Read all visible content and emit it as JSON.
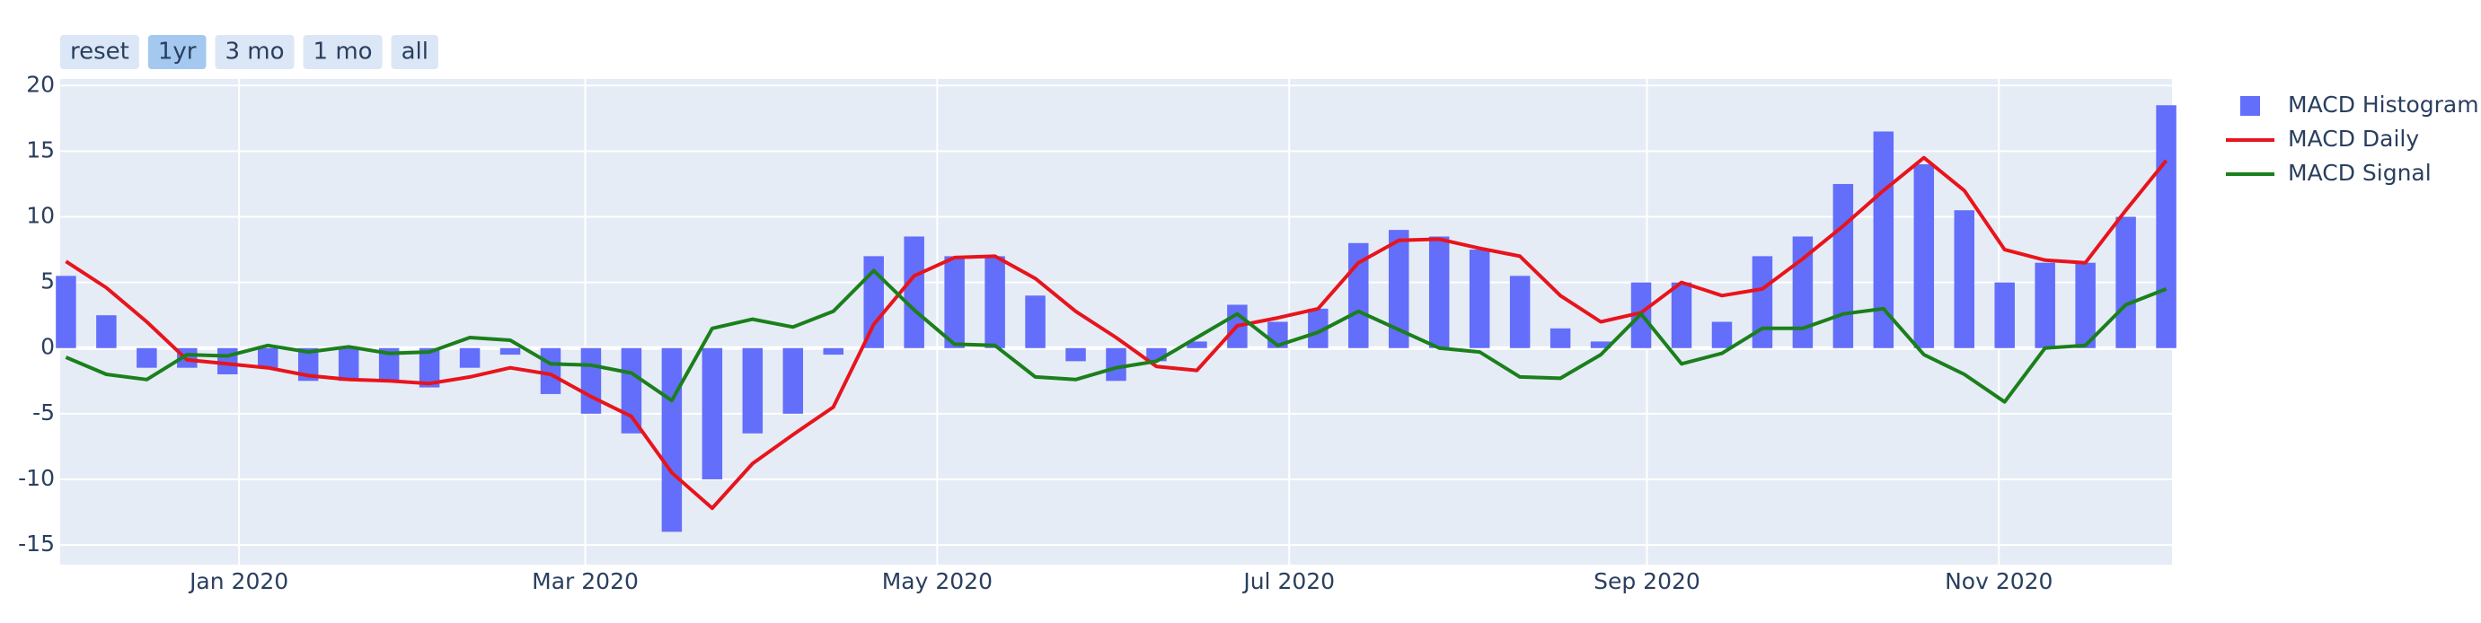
{
  "range_selector": {
    "buttons": [
      "reset",
      "1yr",
      "3 mo",
      "1 mo",
      "all"
    ],
    "active": 1
  },
  "chart_data": {
    "type": "bar-line",
    "x": [
      "2019-12-02",
      "2019-12-09",
      "2019-12-16",
      "2019-12-23",
      "2019-12-30",
      "2020-01-06",
      "2020-01-13",
      "2020-01-20",
      "2020-01-27",
      "2020-02-03",
      "2020-02-10",
      "2020-02-17",
      "2020-02-24",
      "2020-03-02",
      "2020-03-09",
      "2020-03-16",
      "2020-03-23",
      "2020-03-30",
      "2020-04-06",
      "2020-04-13",
      "2020-04-20",
      "2020-04-27",
      "2020-05-04",
      "2020-05-11",
      "2020-05-18",
      "2020-05-25",
      "2020-06-01",
      "2020-06-08",
      "2020-06-15",
      "2020-06-22",
      "2020-06-29",
      "2020-07-06",
      "2020-07-13",
      "2020-07-20",
      "2020-07-27",
      "2020-08-03",
      "2020-08-10",
      "2020-08-17",
      "2020-08-24",
      "2020-08-31",
      "2020-09-07",
      "2020-09-14",
      "2020-09-21",
      "2020-09-28",
      "2020-10-05",
      "2020-10-12",
      "2020-10-19",
      "2020-10-26",
      "2020-11-02",
      "2020-11-09",
      "2020-11-16",
      "2020-11-23",
      "2020-11-30"
    ],
    "series": [
      {
        "name": "MACD Histogram",
        "kind": "bar",
        "color": "#636efa",
        "values": [
          5.5,
          2.5,
          -1.5,
          -1.5,
          -2,
          -1.5,
          -2.5,
          -2.5,
          -2.5,
          -3,
          -1.5,
          -0.5,
          -3.5,
          -5,
          -6.5,
          -14,
          -10,
          -6.5,
          -5,
          -0.5,
          7,
          8.5,
          7,
          7,
          4,
          -1,
          -2.5,
          -1,
          0.5,
          3.3,
          2,
          3,
          8,
          9,
          8.5,
          7.5,
          5.5,
          1.5,
          0.5,
          5,
          5,
          2,
          7,
          8.5,
          12.5,
          16.5,
          14,
          10.5,
          5,
          6.5,
          6.5,
          10,
          18.5
        ]
      },
      {
        "name": "MACD Daily",
        "kind": "line",
        "color": "#e8141c",
        "values": [
          6.6,
          4.6,
          2.0,
          -0.9,
          -1.2,
          -1.5,
          -2.1,
          -2.4,
          -2.5,
          -2.7,
          -2.2,
          -1.5,
          -2.0,
          -3.7,
          -5.2,
          -9.5,
          -12.2,
          -8.8,
          -6.6,
          -4.5,
          1.8,
          5.5,
          6.9,
          7.0,
          5.3,
          2.8,
          0.8,
          -1.4,
          -1.7,
          1.7,
          2.3,
          3.0,
          6.5,
          8.2,
          8.3,
          7.6,
          7.0,
          4.0,
          2.0,
          2.7,
          5.0,
          4.0,
          4.5,
          6.8,
          9.3,
          12.0,
          14.5,
          12.0,
          7.5,
          6.7,
          6.5,
          10.5,
          14.3
        ]
      },
      {
        "name": "MACD Signal",
        "kind": "line",
        "color": "#1b7f1b",
        "values": [
          -0.7,
          -2.0,
          -2.4,
          -0.5,
          -0.6,
          0.2,
          -0.3,
          0.1,
          -0.4,
          -0.3,
          0.8,
          0.6,
          -1.2,
          -1.3,
          -1.9,
          -4.0,
          1.5,
          2.2,
          1.6,
          2.8,
          5.9,
          2.9,
          0.3,
          0.2,
          -2.2,
          -2.4,
          -1.5,
          -1.0,
          0.8,
          2.6,
          0.2,
          1.2,
          2.8,
          1.4,
          0.0,
          -0.3,
          -2.2,
          -2.3,
          -0.5,
          2.6,
          -1.2,
          -0.4,
          1.5,
          1.5,
          2.6,
          3.0,
          -0.5,
          -2.0,
          -4.1,
          0.0,
          0.2,
          3.3,
          4.5
        ]
      }
    ],
    "xlim": [
      "2019-12-01",
      "2020-12-01"
    ],
    "xticks": [
      {
        "value": "2020-01-01",
        "label": "Jan 2020"
      },
      {
        "value": "2020-03-01",
        "label": "Mar 2020"
      },
      {
        "value": "2020-05-01",
        "label": "May 2020"
      },
      {
        "value": "2020-07-01",
        "label": "Jul 2020"
      },
      {
        "value": "2020-09-01",
        "label": "Sep 2020"
      },
      {
        "value": "2020-11-01",
        "label": "Nov 2020"
      }
    ],
    "ylim": [
      -16.5,
      20.5
    ],
    "yticks": [
      -15,
      -10,
      -5,
      0,
      5,
      10,
      15,
      20
    ],
    "grid": true
  }
}
